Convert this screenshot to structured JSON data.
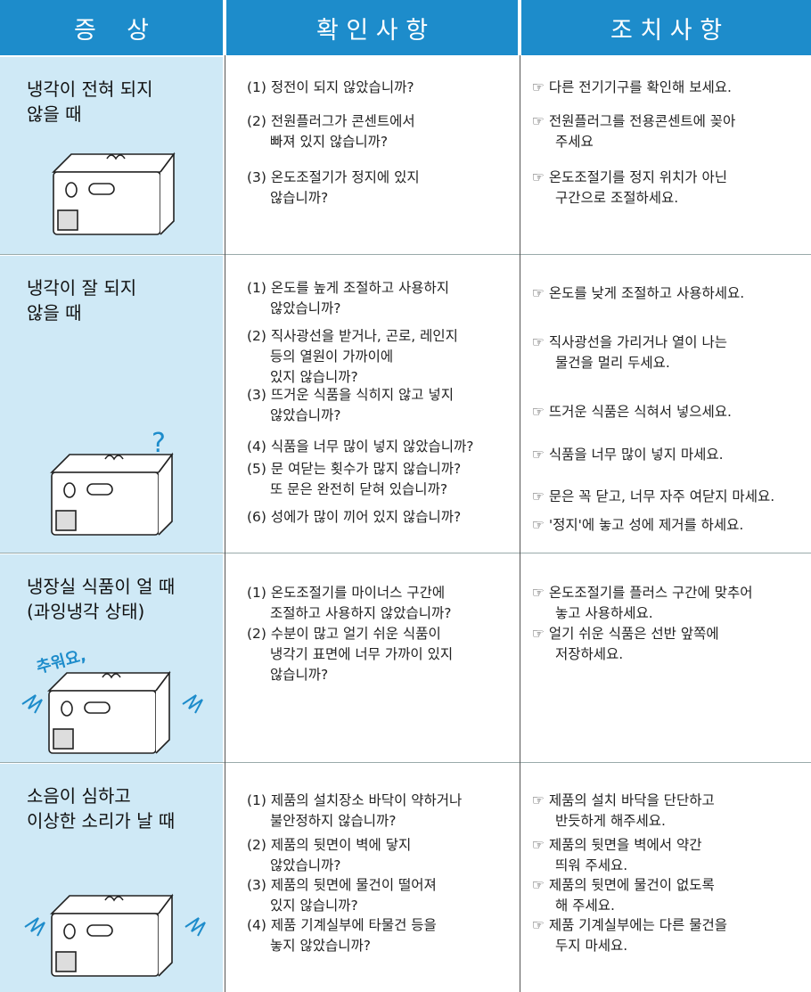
{
  "header": {
    "columns": [
      "증    상",
      "확 인 사 항",
      "조 치 사 항"
    ]
  },
  "rows": [
    {
      "symptom": "냉각이 전혀 되지\n않을 때",
      "checks": [
        "(1) 정전이 되지 않았습니까?",
        "(2) 전원플러그가 콘센트에서\n빠져 있지 않습니까?",
        "(3) 온도조절기가 정지에 있지\n않습니까?"
      ],
      "actions": [
        "☞ 다른 전기기구를 확인해 보세요.",
        "☞ 전원플러그를 전용콘센트에 꽂아\n주세요",
        "☞ 온도조절기를 정지 위치가 아닌\n구간으로 조절하세요."
      ]
    },
    {
      "symptom": "냉각이 잘 되지\n않을 때",
      "illustration_text": "?",
      "checks": [
        "(1) 온도를 높게 조절하고 사용하지\n않았습니까?",
        "(2) 직사광선을 받거나, 곤로, 레인지\n등의 열원이 가까이에\n있지 않습니까?",
        "(3) 뜨거운 식품을 식히지 않고 넣지\n않았습니까?",
        "(4) 식품을 너무 많이 넣지 않았습니까?",
        "(5) 문 여닫는 횟수가 많지 않습니까?\n또 문은 완전히 닫혀 있습니까?",
        "(6) 성에가 많이 끼어 있지 않습니까?"
      ],
      "actions": [
        "☞ 온도를 낮게 조절하고 사용하세요.",
        "☞ 직사광선을 가리거나 열이 나는\n물건을 멀리 두세요.",
        "☞ 뜨거운 식품은 식혀서 넣으세요.",
        "☞ 식품을 너무 많이 넣지 마세요.",
        "☞ 문은 꼭 닫고, 너무 자주 여닫지 마세요.",
        "☞ '정지'에 놓고 성에 제거를 하세요."
      ]
    },
    {
      "symptom": "냉장실 식품이 얼 때\n(과잉냉각 상태)",
      "illustration_text": "추워요,",
      "checks": [
        "(1) 온도조절기를 마이너스 구간에\n조절하고 사용하지 않았습니까?",
        "(2) 수분이 많고 얼기 쉬운 식품이\n냉각기 표면에 너무 가까이 있지\n않습니까?"
      ],
      "actions": [
        "☞ 온도조절기를 플러스 구간에 맞추어\n놓고 사용하세요.",
        "☞ 얼기 쉬운 식품은 선반 앞쪽에\n저장하세요."
      ]
    },
    {
      "symptom": "소음이 심하고\n이상한 소리가 날 때",
      "checks": [
        "(1) 제품의 설치장소 바닥이 약하거나\n불안정하지 않습니까?",
        "(2) 제품의 뒷면이 벽에 닿지\n않았습니까?",
        "(3) 제품의 뒷면에 물건이 떨어져\n있지  않습니까?",
        "(4) 제품 기계실부에 타물건 등을\n놓지 않았습니까?"
      ],
      "actions": [
        "☞ 제품의 설치 바닥을 단단하고\n반듯하게 해주세요.",
        "☞ 제품의 뒷면을 벽에서 약간\n띄워 주세요.",
        "☞ 제품의 뒷면에 물건이 없도록\n해 주세요.",
        "☞ 제품 기계실부에는 다른 물건을\n두지 마세요."
      ]
    }
  ]
}
